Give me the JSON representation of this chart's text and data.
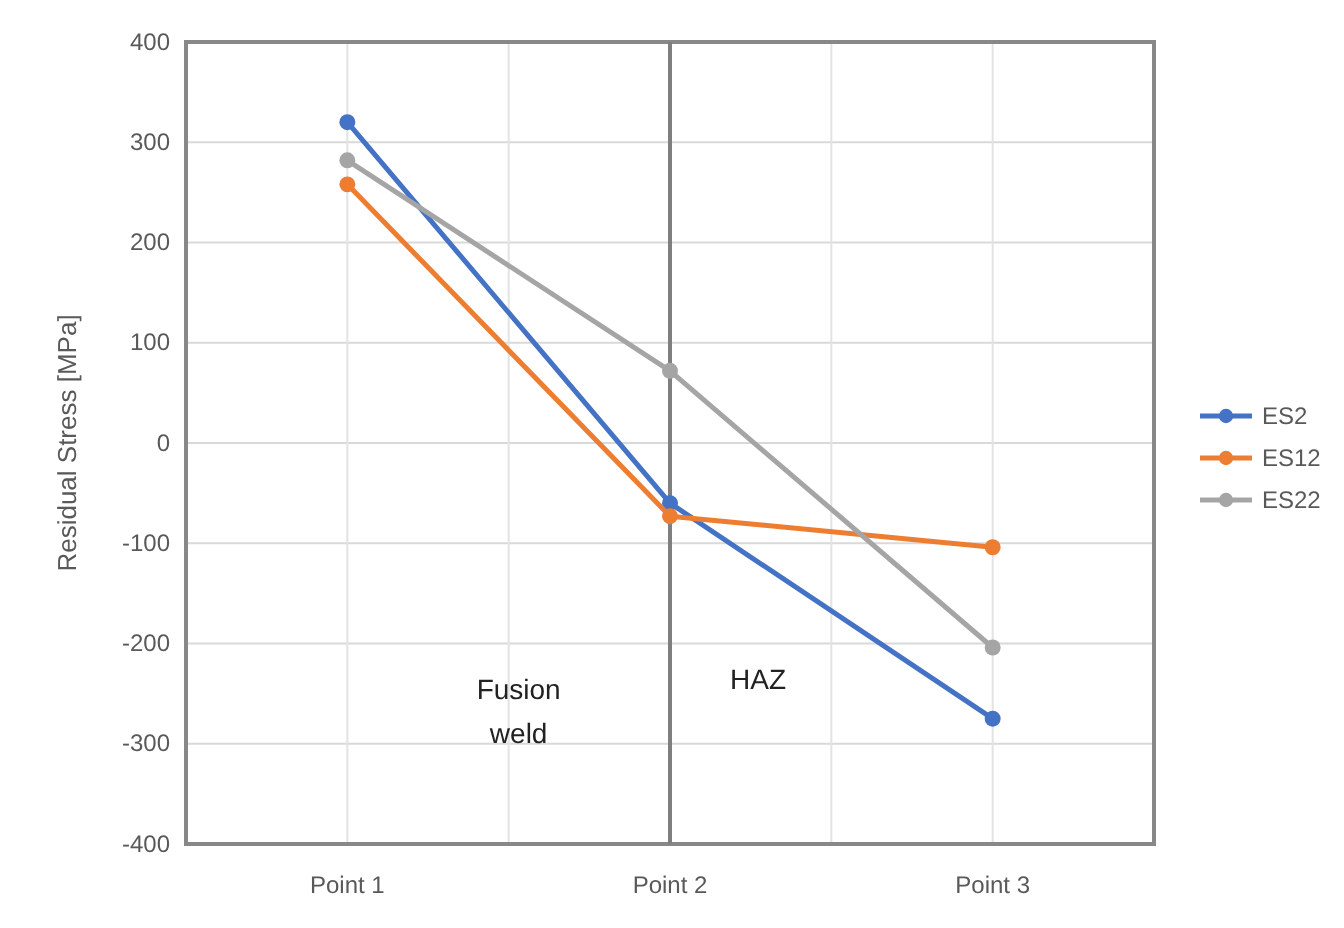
{
  "chart_data": {
    "type": "line",
    "ylabel": "Residual Stress [MPa]",
    "categories": [
      "Point 1",
      "Point 2",
      "Point 3"
    ],
    "ylim": [
      -400,
      400
    ],
    "yticks": [
      -400,
      -300,
      -200,
      -100,
      0,
      100,
      200,
      300,
      400
    ],
    "grid": true,
    "legend": "right",
    "marker": "circle",
    "line_style": "solid",
    "series": [
      {
        "name": "ES2",
        "color": "#4472c4",
        "values": [
          320,
          -60,
          -275
        ]
      },
      {
        "name": "ES12",
        "color": "#ed7d31",
        "values": [
          258,
          -73,
          -104
        ]
      },
      {
        "name": "ES22",
        "color": "#a5a5a5",
        "values": [
          282,
          72,
          -204
        ]
      }
    ],
    "ref_lines": [
      {
        "axis": "x",
        "value": "Point 2",
        "color": "#7f7f7f",
        "line_style": "solid"
      }
    ],
    "annotations": [
      "Fusion weld",
      "HAZ"
    ]
  }
}
